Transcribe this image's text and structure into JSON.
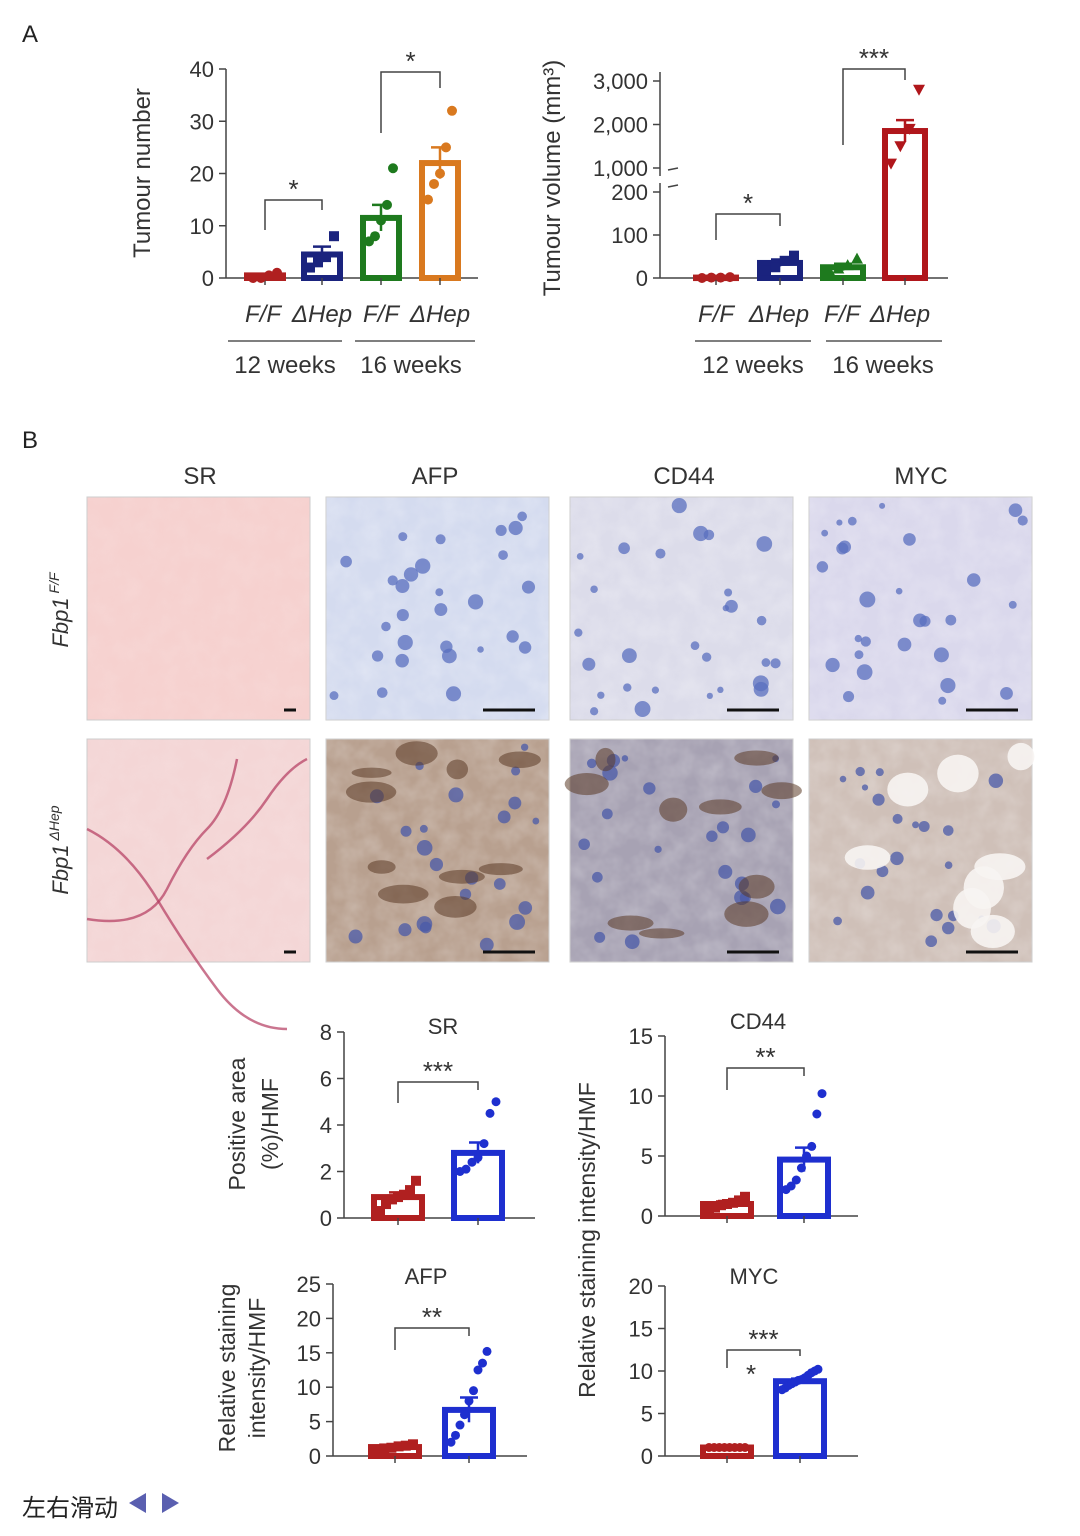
{
  "panel_labels": [
    "A",
    "B"
  ],
  "colors": {
    "ff_12": "#b02020",
    "hep_12": "#1a237e",
    "ff_16": "#1e7a1e",
    "hep_16": "#d9791f",
    "vol_hep_16": "#b0161b",
    "ff": "#b02020",
    "hep": "#1e2fcf"
  },
  "axis_labels": {
    "tumour_number": "Tumour number",
    "tumour_volume": "Tumour volume (mm³)",
    "positive_area": [
      "Positive area",
      "(%)/HMF"
    ],
    "relative_staining_short": [
      "Relative staining",
      "intensity/HMF"
    ],
    "relative_staining_long": "Relative staining intensity/HMF"
  },
  "genotype_labels": {
    "ff": "F/F",
    "hep": "ΔHep",
    "fbp1": "Fbp1",
    "sup_ff": "F/F",
    "sup_hep": "ΔHep"
  },
  "group_labels": {
    "w12": "12 weeks",
    "w16": "16 weeks"
  },
  "histology": {
    "columns": [
      "SR",
      "AFP",
      "CD44",
      "MYC"
    ],
    "rows": [
      {
        "prefix": "Fbp1",
        "sup": "F/F"
      },
      {
        "prefix": "Fbp1",
        "sup": "ΔHep"
      }
    ]
  },
  "footer": {
    "text": "左右滑动",
    "prev_icon": "triangle-left",
    "next_icon": "triangle-right"
  },
  "chart_data": [
    {
      "id": "tumour-number",
      "type": "bar",
      "categories": [
        "F/F 12 weeks",
        "ΔHep 12 weeks",
        "F/F 16 weeks",
        "ΔHep 16 weeks"
      ],
      "values": [
        0.5,
        4.5,
        11.5,
        22
      ],
      "errors": [
        0.3,
        1.5,
        2.5,
        3
      ],
      "points": [
        [
          0,
          0,
          0.5,
          1
        ],
        [
          2,
          3,
          4,
          8
        ],
        [
          7,
          8,
          11,
          14,
          21
        ],
        [
          15,
          18,
          20,
          25,
          32
        ]
      ],
      "ylabel": "Tumour number",
      "ylim": [
        0,
        40
      ],
      "yticks": [
        0,
        10,
        20,
        30,
        40
      ],
      "significance": [
        {
          "groups": [
            0,
            1
          ],
          "label": "*"
        },
        {
          "groups": [
            2,
            3
          ],
          "label": "*"
        }
      ]
    },
    {
      "id": "tumour-volume",
      "type": "bar",
      "categories": [
        "F/F 12 weeks",
        "ΔHep 12 weeks",
        "F/F 16 weeks",
        "ΔHep 16 weeks"
      ],
      "values": [
        1,
        35,
        25,
        1850
      ],
      "errors": [
        0.5,
        8,
        8,
        250
      ],
      "points": [
        [
          0,
          1,
          1,
          2
        ],
        [
          18,
          25,
          40,
          52
        ],
        [
          18,
          22,
          30,
          45
        ],
        [
          1100,
          1500,
          1900,
          2800
        ]
      ],
      "ylabel": "Tumour volume (mm³)",
      "yticks_lower": [
        0,
        100,
        200
      ],
      "yticks_upper": [
        1000,
        2000,
        3000
      ],
      "ytick_labels": [
        "0",
        "100",
        "200",
        "1,000",
        "2,000",
        "3,000"
      ],
      "axis_break": [
        200,
        1000
      ],
      "significance": [
        {
          "groups": [
            0,
            1
          ],
          "label": "*"
        },
        {
          "groups": [
            2,
            3
          ],
          "label": "***"
        }
      ]
    },
    {
      "id": "sr-quant",
      "type": "bar",
      "title": "SR",
      "categories": [
        "Fbp1 F/F",
        "Fbp1 ΔHep"
      ],
      "values": [
        0.9,
        2.8
      ],
      "errors": [
        0.2,
        0.45
      ],
      "points": [
        [
          0.3,
          0.6,
          0.8,
          0.9,
          1.0,
          1.2,
          1.6
        ],
        [
          2.0,
          2.1,
          2.4,
          2.6,
          3.2,
          4.5,
          5.0
        ]
      ],
      "ylabel": "Positive area (%)/HMF",
      "ylim": [
        0,
        8
      ],
      "yticks": [
        0,
        2,
        4,
        6,
        8
      ],
      "significance": [
        {
          "groups": [
            0,
            1
          ],
          "label": "***"
        }
      ]
    },
    {
      "id": "cd44-quant",
      "type": "bar",
      "title": "CD44",
      "categories": [
        "Fbp1 F/F",
        "Fbp1 ΔHep"
      ],
      "values": [
        1.0,
        4.7
      ],
      "errors": [
        0.25,
        1.0
      ],
      "points": [
        [
          0.5,
          0.7,
          0.9,
          1.0,
          1.1,
          1.3,
          1.6
        ],
        [
          2.2,
          2.5,
          3.0,
          4.0,
          5.0,
          5.8,
          8.5,
          10.2
        ]
      ],
      "ylabel": "Relative staining intensity/HMF",
      "ylim": [
        0,
        15
      ],
      "yticks": [
        0,
        5,
        10,
        15
      ],
      "significance": [
        {
          "groups": [
            0,
            1
          ],
          "label": "**"
        }
      ]
    },
    {
      "id": "afp-quant",
      "type": "bar",
      "title": "AFP",
      "categories": [
        "Fbp1 F/F",
        "Fbp1 ΔHep"
      ],
      "values": [
        1.3,
        6.7
      ],
      "errors": [
        0.2,
        1.8
      ],
      "points": [
        [
          0.9,
          1.1,
          1.2,
          1.4,
          1.5,
          1.7
        ],
        [
          2.0,
          3.0,
          4.5,
          6.0,
          8.0,
          9.5,
          12.5,
          13.5,
          15.2
        ]
      ],
      "ylabel": "Relative staining intensity/HMF",
      "ylim": [
        0,
        25
      ],
      "yticks": [
        0,
        5,
        10,
        15,
        20,
        25
      ],
      "significance": [
        {
          "groups": [
            0,
            1
          ],
          "label": "**"
        }
      ]
    },
    {
      "id": "myc-quant",
      "type": "bar",
      "title": "MYC",
      "categories": [
        "Fbp1 F/F",
        "Fbp1 ΔHep"
      ],
      "values": [
        1.0,
        8.8
      ],
      "errors": [
        0.05,
        0.3
      ],
      "points": [
        [
          1.0,
          1.0,
          1.0,
          1.0,
          1.0,
          1.0,
          1.0,
          1.0
        ],
        [
          7.8,
          8.0,
          8.3,
          8.5,
          8.7,
          8.9,
          9.0,
          9.2,
          9.5,
          9.8,
          10.0,
          10.2
        ]
      ],
      "ylim": [
        0,
        20
      ],
      "yticks": [
        0,
        5,
        10,
        15,
        20
      ],
      "significance": [
        {
          "groups": [
            0,
            1
          ],
          "label": "***"
        }
      ],
      "annotation": "*"
    }
  ]
}
